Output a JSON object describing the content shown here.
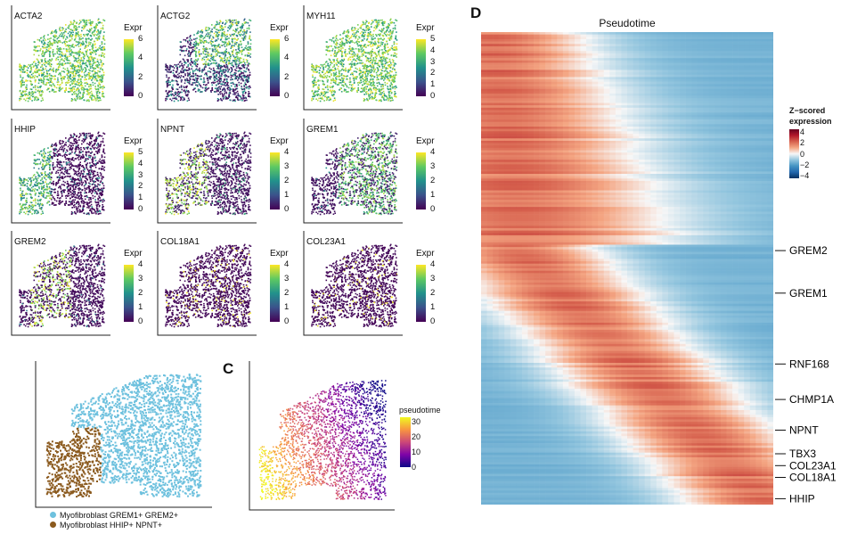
{
  "colors": {
    "viridis": [
      "#440154",
      "#3b528b",
      "#21918c",
      "#5ec962",
      "#fde725"
    ],
    "plasma": [
      "#0d0887",
      "#7e03a8",
      "#cc4778",
      "#f89540",
      "#f0f921"
    ],
    "rdbu": [
      "#053061",
      "#2166ac",
      "#4393c3",
      "#92c5de",
      "#f7f7f7",
      "#f4a582",
      "#d6604d",
      "#b2182b",
      "#67001f"
    ],
    "cluster_grem": "#6ec1de",
    "cluster_hhip": "#8b5a1e"
  },
  "umap_panels": [
    {
      "gene": "ACTA2",
      "legend_title": "Expr",
      "ticks": [
        "6",
        "4",
        "2",
        "0"
      ],
      "max": 6,
      "pattern": "high"
    },
    {
      "gene": "ACTG2",
      "legend_title": "Expr",
      "ticks": [
        "6",
        "4",
        "2",
        "0"
      ],
      "max": 6,
      "pattern": "mixed"
    },
    {
      "gene": "MYH11",
      "legend_title": "Expr",
      "ticks": [
        "5",
        "4",
        "3",
        "2",
        "1",
        "0"
      ],
      "max": 5,
      "pattern": "high"
    },
    {
      "gene": "HHIP",
      "legend_title": "Expr",
      "ticks": [
        "5",
        "4",
        "3",
        "2",
        "1",
        "0"
      ],
      "max": 5,
      "pattern": "left"
    },
    {
      "gene": "NPNT",
      "legend_title": "Expr",
      "ticks": [
        "4",
        "3",
        "2",
        "1",
        "0"
      ],
      "max": 4,
      "pattern": "left-mid"
    },
    {
      "gene": "GREM1",
      "legend_title": "Expr",
      "ticks": [
        "4",
        "3",
        "2",
        "1",
        "0"
      ],
      "max": 4,
      "pattern": "right"
    },
    {
      "gene": "GREM2",
      "legend_title": "Expr",
      "ticks": [
        "4",
        "3",
        "2",
        "1",
        "0"
      ],
      "max": 4,
      "pattern": "mid"
    },
    {
      "gene": "COL18A1",
      "legend_title": "Expr",
      "ticks": [
        "4",
        "3",
        "2",
        "1",
        "0"
      ],
      "max": 4,
      "pattern": "sparse"
    },
    {
      "gene": "COL23A1",
      "legend_title": "Expr",
      "ticks": [
        "4",
        "3",
        "2",
        "1",
        "0"
      ],
      "max": 4,
      "pattern": "sparse"
    }
  ],
  "cluster_legend": [
    {
      "label": "Myofibroblast GREM1+ GREM2+"
    },
    {
      "label": "Myofibroblast HHIP+ NPNT+"
    }
  ],
  "panel_c": {
    "label": "C",
    "legend_title": "pseudotime",
    "ticks": [
      "30",
      "20",
      "10",
      "0"
    ]
  },
  "chart_data": {
    "type": "heatmap",
    "panel_label": "D",
    "title": "Pseudotime",
    "legend_title_line1": "Z−scored",
    "legend_title_line2": "expression",
    "legend_ticks": [
      "4",
      "2",
      "0",
      "−2",
      "−4"
    ],
    "value_range": [
      -4,
      4
    ],
    "n_genes": 200,
    "n_timepoints": 100,
    "x_axis": "pseudotime (early → late)",
    "labeled_genes": [
      {
        "gene": "GREM2",
        "row": 92
      },
      {
        "gene": "GREM1",
        "row": 110
      },
      {
        "gene": "RNF168",
        "row": 140
      },
      {
        "gene": "CHMP1A",
        "row": 155
      },
      {
        "gene": "NPNT",
        "row": 168
      },
      {
        "gene": "TBX3",
        "row": 178
      },
      {
        "gene": "COL23A1",
        "row": 183
      },
      {
        "gene": "COL18A1",
        "row": 188
      },
      {
        "gene": "HHIP",
        "row": 197
      }
    ]
  }
}
